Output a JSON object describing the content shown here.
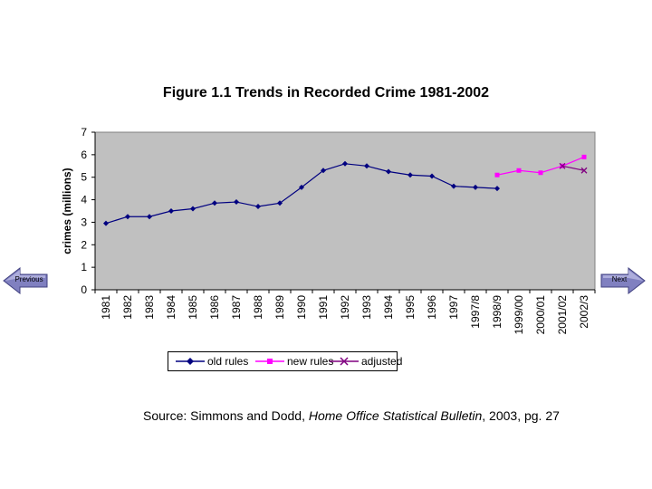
{
  "chart_data": {
    "type": "line",
    "title": "Figure 1.1 Trends in Recorded Crime 1981-2002",
    "ylabel": "crimes (millions)",
    "xlabel": "",
    "ylim": [
      0,
      7
    ],
    "yticks": [
      "0",
      "1",
      "2",
      "3",
      "4",
      "5",
      "6",
      "7"
    ],
    "categories": [
      "1981",
      "1982",
      "1983",
      "1984",
      "1985",
      "1986",
      "1987",
      "1988",
      "1989",
      "1990",
      "1991",
      "1992",
      "1993",
      "1994",
      "1995",
      "1996",
      "1997",
      "1997/8",
      "1998/9",
      "1999/00",
      "2000/01",
      "2001/02",
      "2002/3"
    ],
    "grid": false,
    "legend_position": "bottom",
    "series": [
      {
        "name": "old rules",
        "color": "#000080",
        "marker": "diamond",
        "values": [
          2.95,
          3.25,
          3.25,
          3.5,
          3.6,
          3.85,
          3.9,
          3.7,
          3.85,
          4.55,
          5.3,
          5.6,
          5.5,
          5.25,
          5.1,
          5.05,
          4.6,
          4.55,
          4.5,
          null,
          null,
          null,
          null
        ]
      },
      {
        "name": "new rules",
        "color": "#ff00ff",
        "marker": "square",
        "values": [
          null,
          null,
          null,
          null,
          null,
          null,
          null,
          null,
          null,
          null,
          null,
          null,
          null,
          null,
          null,
          null,
          null,
          null,
          5.1,
          5.3,
          5.2,
          5.5,
          5.9
        ]
      },
      {
        "name": "adjusted",
        "color": "#800080",
        "marker": "x",
        "values": [
          null,
          null,
          null,
          null,
          null,
          null,
          null,
          null,
          null,
          null,
          null,
          null,
          null,
          null,
          null,
          null,
          null,
          null,
          null,
          null,
          null,
          5.5,
          5.3
        ]
      }
    ],
    "plot_background": "#c0c0c0"
  },
  "source": {
    "prefix": "Source: Simmons and Dodd, ",
    "publication": "Home Office Statistical Bulletin",
    "suffix": ", 2003, pg. 27"
  },
  "nav": {
    "previous_label": "Previous",
    "next_label": "Next",
    "button_color": "#8080c0"
  }
}
